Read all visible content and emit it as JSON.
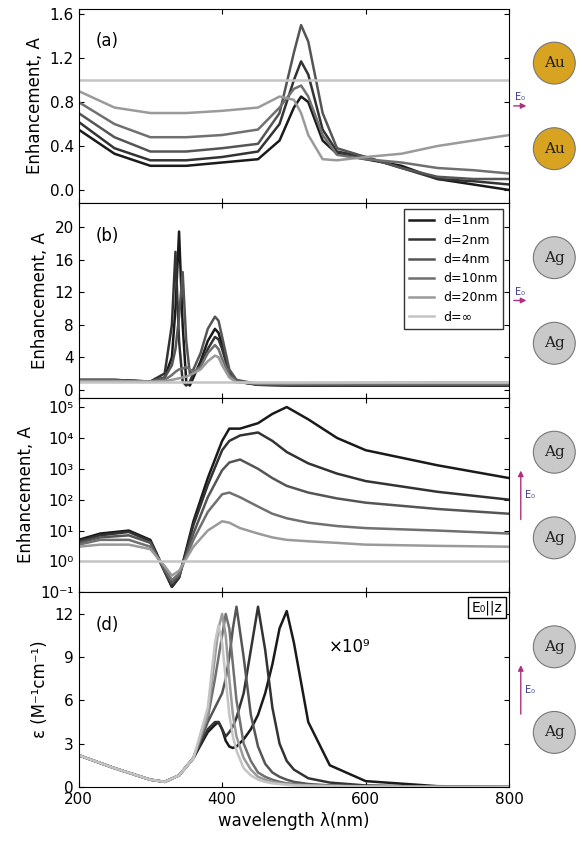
{
  "chart_data": [
    {
      "type": "line",
      "y_label": "Enhancement, A",
      "annotations": [
        "(a)"
      ],
      "particles": [
        "Au",
        "Au"
      ],
      "field": "E₀",
      "xlim": [
        200,
        800
      ],
      "xticks": [
        200,
        400,
        600,
        800
      ],
      "tick_labels": "y",
      "ylim": [
        -0.12,
        1.65
      ],
      "yticks": [
        {
          "value": 0,
          "label": "0.0"
        },
        0.4,
        0.8,
        1.2,
        1.6
      ],
      "x": [
        200,
        250,
        300,
        350,
        400,
        450,
        480,
        500,
        510,
        520,
        540,
        560,
        600,
        650,
        700,
        750,
        800
      ],
      "series": [
        {
          "name": "d=1nm",
          "color": "#1a1a1a",
          "values": [
            0.55,
            0.33,
            0.22,
            0.22,
            0.25,
            0.28,
            0.45,
            0.75,
            0.85,
            0.8,
            0.45,
            0.33,
            0.28,
            0.22,
            0.1,
            0.05,
            0.0
          ]
        },
        {
          "name": "d=2nm",
          "color": "#333333",
          "values": [
            0.62,
            0.38,
            0.27,
            0.27,
            0.3,
            0.35,
            0.6,
            1.0,
            1.17,
            1.05,
            0.55,
            0.35,
            0.3,
            0.2,
            0.1,
            0.08,
            0.05
          ]
        },
        {
          "name": "d=4nm",
          "color": "#555555",
          "values": [
            0.7,
            0.48,
            0.35,
            0.35,
            0.38,
            0.42,
            0.7,
            1.25,
            1.5,
            1.35,
            0.7,
            0.38,
            0.3,
            0.2,
            0.12,
            0.1,
            0.1
          ]
        },
        {
          "name": "d=10nm",
          "color": "#707070",
          "values": [
            0.8,
            0.6,
            0.48,
            0.48,
            0.5,
            0.55,
            0.75,
            0.92,
            0.95,
            0.85,
            0.5,
            0.32,
            0.28,
            0.25,
            0.2,
            0.18,
            0.15
          ]
        },
        {
          "name": "d=20nm",
          "color": "#9a9a9a",
          "values": [
            0.9,
            0.75,
            0.7,
            0.7,
            0.72,
            0.75,
            0.85,
            0.82,
            0.7,
            0.5,
            0.28,
            0.27,
            0.3,
            0.33,
            0.4,
            0.45,
            0.5
          ]
        },
        {
          "name": "d=∞",
          "color": "#c4c4c4",
          "values": [
            1,
            1,
            1,
            1,
            1,
            1,
            1,
            1,
            1,
            1,
            1,
            1,
            1,
            1,
            1,
            1,
            1
          ]
        }
      ]
    },
    {
      "type": "line",
      "y_label": "Enhancement, A",
      "annotations": [
        "(b)"
      ],
      "particles": [
        "Ag",
        "Ag"
      ],
      "field": "E₀",
      "legend": "upper right",
      "xlim": [
        200,
        800
      ],
      "xticks": [
        200,
        400,
        600,
        800
      ],
      "tick_labels": "y",
      "ylim": [
        -1,
        23
      ],
      "yticks": [
        0,
        4,
        8,
        12,
        16,
        20
      ],
      "x": [
        200,
        250,
        300,
        320,
        330,
        335,
        340,
        345,
        350,
        355,
        360,
        370,
        380,
        390,
        395,
        400,
        410,
        420,
        450,
        500,
        600,
        700,
        800
      ],
      "series": [
        {
          "name": "d=1nm",
          "color": "#1a1a1a",
          "values": [
            1.2,
            1.2,
            1.0,
            1.5,
            4,
            10,
            19.5,
            8,
            1,
            0.5,
            1.5,
            3.5,
            6,
            7.5,
            7,
            5.5,
            2,
            1,
            0.6,
            0.5,
            0.5,
            0.5,
            0.5
          ]
        },
        {
          "name": "d=2nm",
          "color": "#333333",
          "values": [
            1.2,
            1.2,
            1.0,
            2,
            8,
            17,
            6,
            1,
            0.5,
            1,
            2,
            3,
            5,
            6.5,
            6.2,
            5,
            2,
            1,
            0.6,
            0.5,
            0.5,
            0.5,
            0.5
          ]
        },
        {
          "name": "d=4nm",
          "color": "#555555",
          "values": [
            1.1,
            1.1,
            1.0,
            1.5,
            3,
            5,
            9,
            14.5,
            6,
            2,
            2.5,
            4.5,
            7.5,
            9,
            8.5,
            6.5,
            2.5,
            1.2,
            0.7,
            0.6,
            0.6,
            0.6,
            0.6
          ]
        },
        {
          "name": "d=10nm",
          "color": "#707070",
          "values": [
            1.1,
            1.1,
            1.0,
            1.2,
            1.8,
            2.2,
            2.5,
            2.6,
            2.8,
            2.5,
            2.2,
            2.8,
            4.5,
            5.5,
            5,
            3.8,
            1.8,
            1,
            0.7,
            0.7,
            0.7,
            0.7,
            0.7
          ]
        },
        {
          "name": "d=20nm",
          "color": "#9a9a9a",
          "values": [
            1.05,
            1.05,
            1.0,
            1.05,
            1.2,
            1.3,
            1.4,
            1.5,
            1.6,
            1.8,
            2,
            2.5,
            3.5,
            4.2,
            4,
            3,
            1.5,
            0.9,
            0.8,
            0.8,
            0.85,
            0.9,
            0.9
          ]
        },
        {
          "name": "d=∞",
          "color": "#c4c4c4",
          "values": [
            1,
            1,
            1,
            1,
            1,
            1,
            1,
            1,
            1,
            1,
            1,
            1,
            1,
            1,
            1,
            1,
            1,
            1,
            1,
            1,
            1,
            1,
            1
          ]
        }
      ]
    },
    {
      "type": "line",
      "y_label": "Enhancement, A",
      "log": "y",
      "particles": [
        "Ag",
        "Ag"
      ],
      "field": "E₀",
      "xlim": [
        200,
        800
      ],
      "xticks": [
        200,
        400,
        600,
        800
      ],
      "tick_labels": "y",
      "ylim": [
        0.1,
        200000
      ],
      "yticks": [
        {
          "value": 0.1,
          "label": "10⁻¹"
        },
        {
          "value": 1,
          "label": "10⁰"
        },
        {
          "value": 10,
          "label": "10¹"
        },
        {
          "value": 100,
          "label": "10²"
        },
        {
          "value": 1000,
          "label": "10³"
        },
        {
          "value": 10000,
          "label": "10⁴"
        },
        {
          "value": 100000,
          "label": "10⁵"
        }
      ],
      "x": [
        200,
        230,
        270,
        300,
        320,
        330,
        340,
        360,
        380,
        400,
        410,
        425,
        450,
        470,
        490,
        520,
        560,
        600,
        700,
        800
      ],
      "series": [
        {
          "name": "d=1nm",
          "color": "#1a1a1a",
          "values": [
            5,
            8,
            10,
            5,
            0.5,
            0.15,
            0.3,
            20,
            500,
            8000,
            20000,
            20000,
            30000,
            60000,
            100000,
            40000,
            10000,
            4000,
            1300,
            500
          ]
        },
        {
          "name": "d=2nm",
          "color": "#333333",
          "values": [
            4.5,
            7,
            9,
            4.5,
            0.45,
            0.15,
            0.3,
            15,
            300,
            4000,
            8000,
            12000,
            15000,
            8000,
            3500,
            1500,
            700,
            400,
            180,
            100
          ]
        },
        {
          "name": "d=4nm",
          "color": "#555555",
          "values": [
            4,
            6,
            7,
            4,
            0.5,
            0.2,
            0.35,
            8,
            120,
            900,
            1600,
            2000,
            1000,
            500,
            280,
            170,
            110,
            80,
            50,
            35
          ]
        },
        {
          "name": "d=10nm",
          "color": "#707070",
          "values": [
            3.5,
            5,
            5,
            3,
            0.6,
            0.25,
            0.4,
            5,
            40,
            150,
            170,
            120,
            60,
            35,
            25,
            18,
            14,
            12,
            10,
            8
          ]
        },
        {
          "name": "d=20nm",
          "color": "#9a9a9a",
          "values": [
            3,
            3.5,
            3.5,
            2.5,
            0.7,
            0.35,
            0.5,
            3,
            10,
            20,
            18,
            12,
            8,
            6,
            5,
            4.5,
            4,
            3.5,
            3.2,
            3
          ]
        },
        {
          "name": "d=∞",
          "color": "#c4c4c4",
          "values": [
            1,
            1,
            1,
            1,
            1,
            1,
            1,
            1,
            1,
            1,
            1,
            1,
            1,
            1,
            1,
            1,
            1,
            1,
            1,
            1
          ]
        }
      ]
    },
    {
      "type": "line",
      "y_label": "ε (M⁻¹cm⁻¹)",
      "x_label": "wavelength λ(nm)",
      "annotations": [
        "(d)",
        "×10⁹",
        "E₀||z"
      ],
      "particles": [
        "Ag",
        "Ag"
      ],
      "field": "E₀",
      "xlim": [
        200,
        800
      ],
      "xticks": [
        200,
        400,
        600,
        800
      ],
      "ylim": [
        0,
        13.5
      ],
      "yticks": [
        0,
        3,
        6,
        9,
        12
      ],
      "x": [
        200,
        250,
        300,
        320,
        340,
        360,
        380,
        390,
        395,
        400,
        405,
        410,
        415,
        420,
        430,
        440,
        450,
        460,
        470,
        480,
        490,
        500,
        520,
        550,
        600,
        700,
        800
      ],
      "series": [
        {
          "name": "d=1nm",
          "color": "#1a1a1a",
          "values": [
            2.2,
            1.3,
            0.5,
            0.35,
            0.8,
            2,
            3.8,
            4.3,
            4.5,
            4,
            3.2,
            2.8,
            2.7,
            2.8,
            3.3,
            4,
            5,
            6.5,
            8.5,
            11,
            12.2,
            10,
            4.5,
            1.5,
            0.4,
            0.05,
            0
          ]
        },
        {
          "name": "d=2nm",
          "color": "#333333",
          "values": [
            2.2,
            1.3,
            0.5,
            0.35,
            0.8,
            2,
            4,
            4.5,
            4.5,
            4,
            3.5,
            3.8,
            4.2,
            4.8,
            6.5,
            9.5,
            12.5,
            9.5,
            5.5,
            3,
            1.8,
            1.2,
            0.6,
            0.3,
            0.1,
            0.02,
            0
          ]
        },
        {
          "name": "d=4nm",
          "color": "#555555",
          "values": [
            2.2,
            1.3,
            0.5,
            0.35,
            0.8,
            2,
            4.5,
            5.5,
            6,
            6.5,
            7.5,
            9,
            11,
            12.5,
            9,
            5,
            2.8,
            1.6,
            1,
            0.7,
            0.5,
            0.35,
            0.2,
            0.1,
            0.05,
            0,
            0
          ]
        },
        {
          "name": "d=10nm",
          "color": "#707070",
          "values": [
            2.2,
            1.3,
            0.5,
            0.35,
            0.8,
            2,
            4.8,
            7.5,
            9,
            10.5,
            12,
            11,
            8.5,
            6,
            3,
            1.8,
            1,
            0.7,
            0.5,
            0.35,
            0.25,
            0.2,
            0.12,
            0.08,
            0.04,
            0,
            0
          ]
        },
        {
          "name": "d=20nm",
          "color": "#9a9a9a",
          "values": [
            2.2,
            1.3,
            0.5,
            0.35,
            0.8,
            2,
            5,
            9,
            11,
            12,
            10.5,
            7.5,
            5,
            3.5,
            2,
            1.2,
            0.7,
            0.5,
            0.35,
            0.25,
            0.2,
            0.15,
            0.1,
            0.06,
            0.03,
            0,
            0
          ]
        },
        {
          "name": "d=∞",
          "color": "#c4c4c4",
          "values": [
            2.2,
            1.3,
            0.5,
            0.35,
            0.8,
            2,
            5.5,
            10,
            11.2,
            10,
            7.5,
            5,
            3.5,
            2.5,
            1.3,
            0.8,
            0.5,
            0.35,
            0.25,
            0.2,
            0.15,
            0.1,
            0.08,
            0.05,
            0.02,
            0,
            0
          ]
        }
      ]
    }
  ]
}
